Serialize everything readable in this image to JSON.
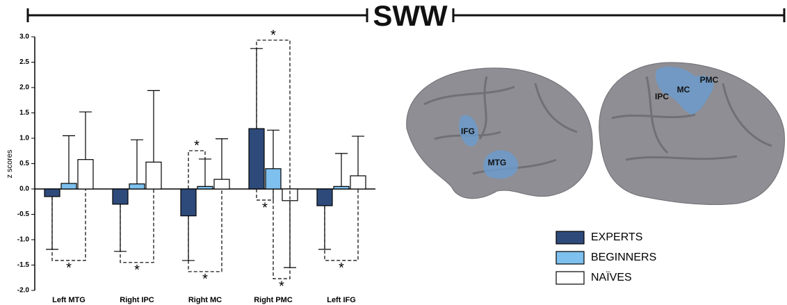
{
  "chart_data": {
    "type": "bar",
    "title": "SWW",
    "y_label": "z scores",
    "categories": [
      "Left MTG",
      "Right IPC",
      "Right MC",
      "Right  PMC",
      "Left IFG"
    ],
    "series": [
      {
        "name": "EXPERTS",
        "color": "#2e4a7a",
        "values": [
          -0.15,
          -0.3,
          -0.53,
          1.19,
          -0.33
        ],
        "errors": [
          1.04,
          0.93,
          0.88,
          1.58,
          0.86
        ]
      },
      {
        "name": "BEGINNERS",
        "color": "#7ec0ee",
        "values": [
          0.11,
          0.1,
          0.05,
          0.4,
          0.05
        ],
        "errors": [
          0.94,
          0.87,
          0.54,
          0.76,
          0.65
        ]
      },
      {
        "name": "NAÏVES",
        "color": "#ffffff",
        "values": [
          0.58,
          0.53,
          0.19,
          -0.23,
          0.26
        ],
        "errors": [
          0.94,
          1.41,
          0.8,
          1.32,
          0.78
        ]
      }
    ],
    "ylim": [
      -2,
      3
    ],
    "yticks": [
      {
        "value": -2,
        "label": "-2.0"
      },
      -1.5,
      {
        "value": -1,
        "label": "-1.0"
      },
      -0.5,
      {
        "value": 0,
        "label": "0.0"
      },
      0.5,
      {
        "value": 1,
        "label": "1.0"
      },
      1.5,
      {
        "value": 2,
        "label": "2.0"
      },
      2.5,
      {
        "value": 3,
        "label": "3.0"
      }
    ],
    "significance": [
      {
        "category": 0,
        "from": 0,
        "to": 2,
        "side": "below",
        "label": "*"
      },
      {
        "category": 1,
        "from": 0,
        "to": 2,
        "side": "below",
        "label": "*"
      },
      {
        "category": 2,
        "from": 0,
        "to": 1,
        "side": "above",
        "label": "*"
      },
      {
        "category": 2,
        "from": 0,
        "to": 2,
        "side": "below",
        "label": "*"
      },
      {
        "category": 3,
        "from": 0,
        "to": 2,
        "side": "above",
        "label": "*"
      },
      {
        "category": 3,
        "from": 0,
        "to": 1,
        "side": "below",
        "label": "*"
      },
      {
        "category": 3,
        "from": 1,
        "to": 2,
        "side": "below",
        "label": "*"
      },
      {
        "category": 4,
        "from": 0,
        "to": 2,
        "side": "below",
        "label": "*"
      }
    ]
  },
  "brain_labels": [
    "IFG",
    "MTG",
    "IPC",
    "MC",
    "PMC"
  ]
}
